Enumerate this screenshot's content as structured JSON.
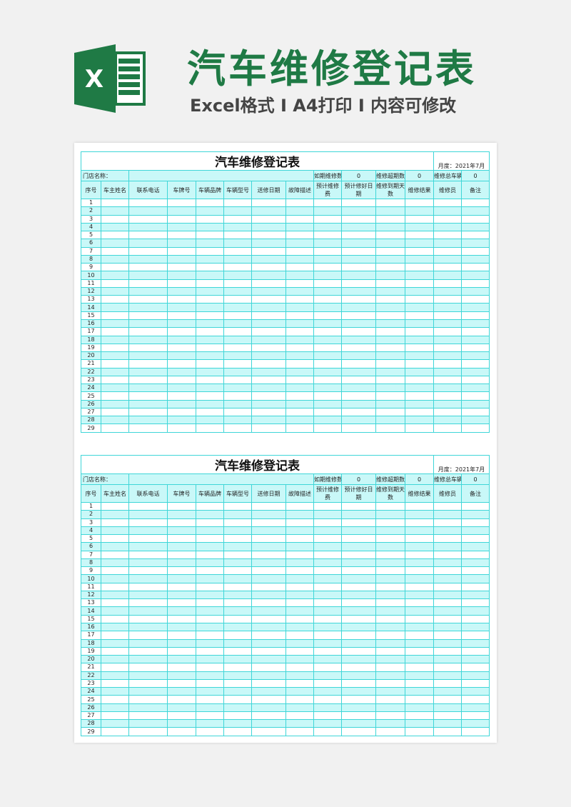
{
  "banner": {
    "title": "汽车维修登记表",
    "subtitle": "Excel格式 I A4打印 I 内容可修改",
    "logo_letter": "X",
    "brand_color": "#1f7a45"
  },
  "tables": [
    {
      "title": "汽车维修登记表",
      "month_label": "月度：2021年7月",
      "store_label": "门店名称：",
      "stats": [
        {
          "label": "如期维修数",
          "value": "0"
        },
        {
          "label": "维修超期数",
          "value": "0"
        },
        {
          "label": "维修总车辆",
          "value": "0"
        }
      ],
      "headers": [
        "序号",
        "车主姓名",
        "联系电话",
        "车牌号",
        "车辆品牌",
        "车辆型号",
        "送修日期",
        "故障描述",
        "预计维修费",
        "预计修好日期",
        "维修到期天数",
        "维修结果",
        "维修员",
        "备注"
      ],
      "rows": [
        "1",
        "2",
        "3",
        "4",
        "5",
        "6",
        "7",
        "8",
        "9",
        "10",
        "11",
        "12",
        "13",
        "14",
        "15",
        "16",
        "17",
        "18",
        "19",
        "20",
        "21",
        "22",
        "23",
        "24",
        "25",
        "26",
        "27",
        "28",
        "29"
      ]
    },
    {
      "title": "汽车维修登记表",
      "month_label": "月度：2021年7月",
      "store_label": "门店名称：",
      "stats": [
        {
          "label": "如期维修数",
          "value": "0"
        },
        {
          "label": "维修超期数",
          "value": "0"
        },
        {
          "label": "维修总车辆",
          "value": "0"
        }
      ],
      "headers": [
        "序号",
        "车主姓名",
        "联系电话",
        "车牌号",
        "车辆品牌",
        "车辆型号",
        "送修日期",
        "故障描述",
        "预计维修费",
        "预计修好日期",
        "维修到期天数",
        "维修结果",
        "维修员",
        "备注"
      ],
      "rows": [
        "1",
        "2",
        "3",
        "4",
        "5",
        "6",
        "7",
        "8",
        "9",
        "10",
        "11",
        "12",
        "13",
        "14",
        "15",
        "16",
        "17",
        "18",
        "19",
        "20",
        "21",
        "22",
        "23",
        "24",
        "25",
        "26",
        "27",
        "28",
        "29"
      ]
    }
  ],
  "colors": {
    "grid": "#3fd6d8",
    "fill": "#c9f8f8"
  }
}
